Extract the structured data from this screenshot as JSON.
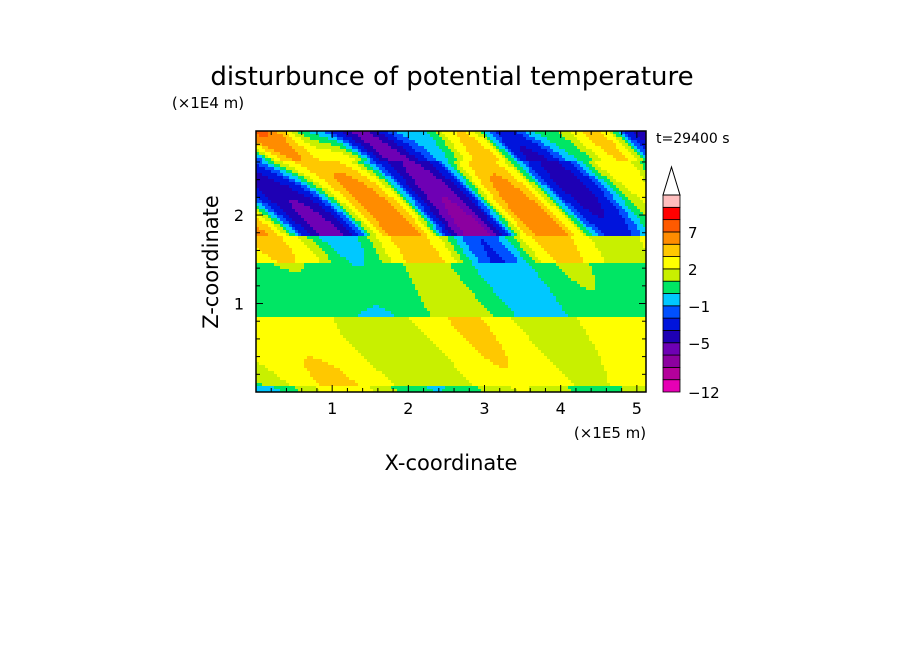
{
  "chart_data": {
    "type": "heatmap",
    "title": "disturbunce of potential temperature",
    "time_label": "t=29400 s",
    "xlabel": "X-coordinate",
    "ylabel": "Z-coordinate",
    "x_unit": "(×1E5 m)",
    "y_unit": "(×1E4 m)",
    "xlim": [
      0,
      5.12
    ],
    "ylim": [
      0,
      2.95
    ],
    "x_ticks": [
      "1",
      "2",
      "3",
      "4",
      "5"
    ],
    "y_ticks": [
      "1",
      "2"
    ],
    "colorbar": {
      "levels": [
        -12,
        -10,
        -8,
        -6.5,
        -5,
        -3.5,
        -2,
        -1,
        0,
        1,
        2,
        3.5,
        5,
        7,
        8.5,
        10
      ],
      "colors": [
        "#e600b4",
        "#b4009b",
        "#8c00a0",
        "#6e00b4",
        "#1e00b4",
        "#0014dc",
        "#0050ff",
        "#00c8ff",
        "#00e664",
        "#c8f000",
        "#ffff00",
        "#ffc800",
        "#ff8c00",
        "#ff5a00",
        "#ff0000",
        "#ffbebe"
      ],
      "labels": [
        "-12",
        "-5",
        "-1",
        "2",
        "7"
      ]
    },
    "field_description": "stratified: lower layer weak positive (yellow), middle layer near zero (green), upper layer alternating strong positive/negative cells"
  }
}
